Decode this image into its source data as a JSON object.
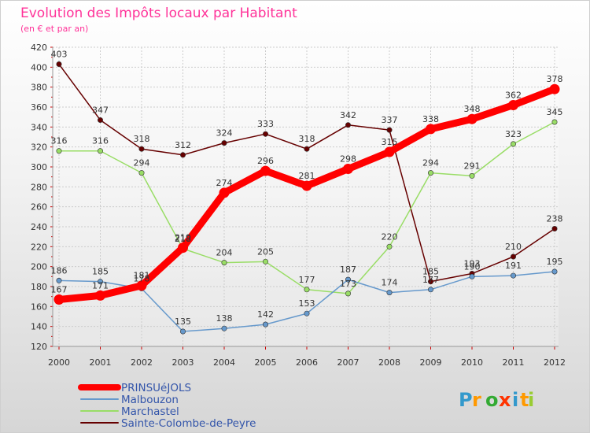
{
  "chart_data": {
    "type": "line",
    "title": "Evolution des Impôts locaux par Habitant",
    "subtitle": "(en € et par an)",
    "xlabel": "",
    "ylabel": "",
    "categories": [
      "2000",
      "2001",
      "2002",
      "2003",
      "2004",
      "2005",
      "2006",
      "2007",
      "2008",
      "2009",
      "2010",
      "2011",
      "2012"
    ],
    "ylim": [
      120,
      420
    ],
    "yticks": [
      120,
      140,
      160,
      180,
      200,
      220,
      240,
      260,
      280,
      300,
      320,
      340,
      360,
      380,
      400,
      420
    ],
    "grid": true,
    "legend_position": "bottom-left",
    "series": [
      {
        "name": "PRINSUéJOLS",
        "color": "#ff0000",
        "values": [
          167,
          171,
          181,
          219,
          274,
          296,
          281,
          298,
          315,
          338,
          348,
          362,
          378
        ],
        "labels": [
          "167",
          "171",
          "181",
          "219",
          "274",
          "296",
          "281",
          "298",
          "315",
          "338",
          "348",
          "362",
          "378"
        ]
      },
      {
        "name": "Malbouzon",
        "color": "#6699cc",
        "values": [
          186,
          185,
          178,
          135,
          138,
          142,
          153,
          187,
          174,
          177,
          190,
          191,
          195
        ],
        "labels": [
          "186",
          "185",
          "178",
          "135",
          "138",
          "142",
          "153",
          "187",
          "174",
          "177",
          "190",
          "191",
          "195"
        ]
      },
      {
        "name": "Marchastel",
        "color": "#99dd66",
        "values": [
          316,
          316,
          294,
          218,
          204,
          205,
          177,
          173,
          220,
          294,
          291,
          323,
          345
        ],
        "labels": [
          "316",
          "316",
          "294",
          "218",
          "204",
          "205",
          "177",
          "173",
          "220",
          "294",
          "291",
          "323",
          "345"
        ]
      },
      {
        "name": "Sainte-Colombe-de-Peyre",
        "color": "#660000",
        "values": [
          403,
          347,
          318,
          312,
          324,
          333,
          318,
          342,
          337,
          185,
          193,
          210,
          238
        ],
        "labels": [
          "403",
          "347",
          "318",
          "312",
          "324",
          "333",
          "318",
          "342",
          "337",
          "185",
          "193",
          "210",
          "238"
        ]
      }
    ]
  },
  "watermark": "Proxiti"
}
